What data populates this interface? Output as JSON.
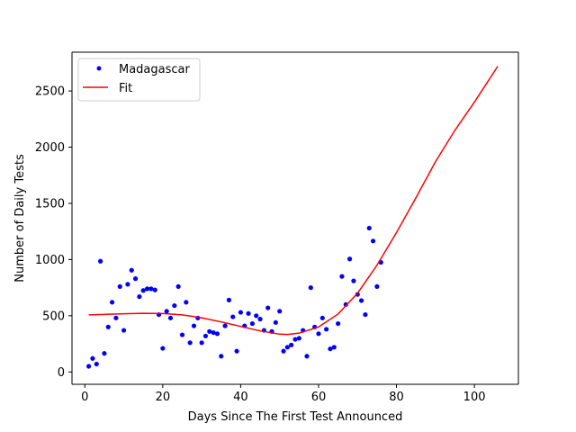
{
  "chart_data": {
    "type": "scatter",
    "xlabel": "Days Since The First Test Announced",
    "ylabel": "Number of Daily Tests",
    "xlim": [
      -3.3,
      111.3
    ],
    "ylim": [
      -110,
      2845
    ],
    "xticks": [
      0,
      20,
      40,
      60,
      80,
      100
    ],
    "yticks": [
      0,
      500,
      1000,
      1500,
      2000,
      2500
    ],
    "grid": false,
    "legend_position": "top-left",
    "series": [
      {
        "name": "Madagascar",
        "kind": "scatter",
        "color": "#0000ff",
        "points": [
          [
            1,
            50
          ],
          [
            2,
            120
          ],
          [
            3,
            70
          ],
          [
            4,
            985
          ],
          [
            5,
            165
          ],
          [
            6,
            400
          ],
          [
            7,
            620
          ],
          [
            8,
            480
          ],
          [
            9,
            760
          ],
          [
            10,
            370
          ],
          [
            11,
            780
          ],
          [
            12,
            905
          ],
          [
            13,
            830
          ],
          [
            14,
            670
          ],
          [
            15,
            725
          ],
          [
            16,
            740
          ],
          [
            17,
            740
          ],
          [
            18,
            730
          ],
          [
            19,
            510
          ],
          [
            20,
            210
          ],
          [
            21,
            540
          ],
          [
            22,
            480
          ],
          [
            23,
            590
          ],
          [
            24,
            760
          ],
          [
            25,
            330
          ],
          [
            26,
            620
          ],
          [
            27,
            260
          ],
          [
            28,
            410
          ],
          [
            29,
            480
          ],
          [
            30,
            260
          ],
          [
            31,
            320
          ],
          [
            32,
            360
          ],
          [
            33,
            350
          ],
          [
            34,
            340
          ],
          [
            35,
            140
          ],
          [
            36,
            410
          ],
          [
            37,
            640
          ],
          [
            38,
            490
          ],
          [
            39,
            185
          ],
          [
            40,
            530
          ],
          [
            41,
            410
          ],
          [
            42,
            520
          ],
          [
            43,
            430
          ],
          [
            44,
            500
          ],
          [
            45,
            470
          ],
          [
            46,
            370
          ],
          [
            47,
            570
          ],
          [
            48,
            360
          ],
          [
            49,
            440
          ],
          [
            50,
            540
          ],
          [
            51,
            185
          ],
          [
            52,
            220
          ],
          [
            53,
            240
          ],
          [
            54,
            290
          ],
          [
            55,
            300
          ],
          [
            56,
            370
          ],
          [
            57,
            140
          ],
          [
            58,
            750
          ],
          [
            59,
            400
          ],
          [
            60,
            340
          ],
          [
            61,
            480
          ],
          [
            62,
            380
          ],
          [
            63,
            205
          ],
          [
            64,
            220
          ],
          [
            65,
            430
          ],
          [
            66,
            850
          ],
          [
            67,
            600
          ],
          [
            68,
            1005
          ],
          [
            69,
            810
          ],
          [
            70,
            690
          ],
          [
            71,
            635
          ],
          [
            72,
            510
          ],
          [
            73,
            1280
          ],
          [
            74,
            1165
          ],
          [
            75,
            760
          ],
          [
            76,
            975
          ]
        ]
      },
      {
        "name": "Fit",
        "kind": "line",
        "color": "#ff0000",
        "points": [
          [
            1,
            508
          ],
          [
            5,
            512
          ],
          [
            10,
            518
          ],
          [
            15,
            522
          ],
          [
            20,
            520
          ],
          [
            25,
            508
          ],
          [
            30,
            482
          ],
          [
            35,
            445
          ],
          [
            40,
            405
          ],
          [
            45,
            365
          ],
          [
            50,
            336
          ],
          [
            52,
            333
          ],
          [
            55,
            345
          ],
          [
            60,
            400
          ],
          [
            65,
            515
          ],
          [
            70,
            700
          ],
          [
            75,
            950
          ],
          [
            80,
            1240
          ],
          [
            85,
            1550
          ],
          [
            90,
            1870
          ],
          [
            95,
            2150
          ],
          [
            100,
            2400
          ],
          [
            106,
            2720
          ]
        ]
      }
    ]
  }
}
